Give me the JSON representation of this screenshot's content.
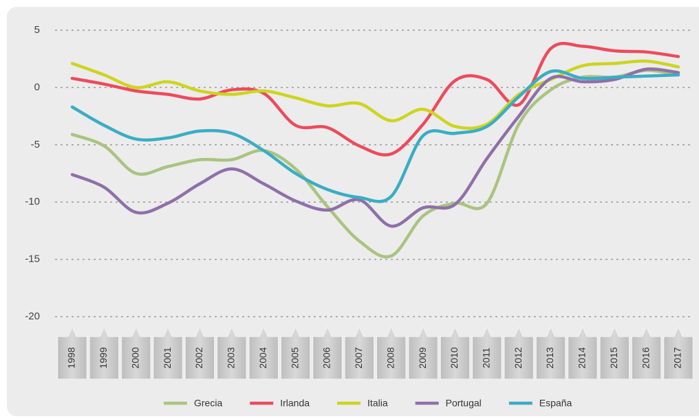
{
  "chart_data": {
    "type": "line",
    "categories": [
      "1998",
      "1999",
      "2000",
      "2001",
      "2002",
      "2003",
      "2004",
      "2005",
      "2006",
      "2007",
      "2008",
      "2009",
      "2010",
      "2011",
      "2012",
      "2013",
      "2014",
      "2015",
      "2016",
      "2017"
    ],
    "series": [
      {
        "name": "Grecia",
        "color": "#a9c47f",
        "values": [
          -4.1,
          -5.1,
          -7.5,
          -6.9,
          -6.3,
          -6.3,
          -5.5,
          -7.1,
          -10.4,
          -13.4,
          -14.7,
          -11.2,
          -10.1,
          -10.1,
          -3.2,
          -0.2,
          0.9,
          0.9,
          1.5,
          1.1
        ]
      },
      {
        "name": "Irlanda",
        "color": "#ec4b5c",
        "values": [
          0.8,
          0.3,
          -0.3,
          -0.6,
          -1.0,
          -0.2,
          -0.5,
          -3.3,
          -3.5,
          -5.1,
          -5.8,
          -3.2,
          0.6,
          0.7,
          -1.5,
          3.4,
          3.6,
          3.2,
          3.1,
          2.7
        ]
      },
      {
        "name": "Italia",
        "color": "#cdd51f",
        "values": [
          2.1,
          1.1,
          0.0,
          0.5,
          -0.3,
          -0.6,
          -0.3,
          -0.9,
          -1.6,
          -1.4,
          -2.9,
          -1.9,
          -3.4,
          -3.2,
          -0.6,
          0.7,
          1.9,
          2.1,
          2.3,
          1.8
        ]
      },
      {
        "name": "Portugal",
        "color": "#8f70a9",
        "values": [
          -7.6,
          -8.7,
          -10.9,
          -10.1,
          -8.4,
          -7.1,
          -8.4,
          -9.9,
          -10.7,
          -9.8,
          -12.1,
          -10.5,
          -10.2,
          -6.2,
          -2.5,
          0.8,
          0.5,
          0.7,
          1.6,
          1.3
        ]
      },
      {
        "name": "España",
        "color": "#3aadc4",
        "values": [
          -1.7,
          -3.3,
          -4.5,
          -4.4,
          -3.8,
          -4.0,
          -5.5,
          -7.5,
          -8.9,
          -9.6,
          -9.5,
          -4.2,
          -4.0,
          -3.4,
          -0.8,
          1.4,
          0.8,
          0.9,
          1.0,
          1.1
        ]
      }
    ],
    "ylim": [
      -20,
      5
    ],
    "yticks": [
      5,
      0,
      -5,
      -10,
      -15,
      -20
    ],
    "grid": true
  }
}
